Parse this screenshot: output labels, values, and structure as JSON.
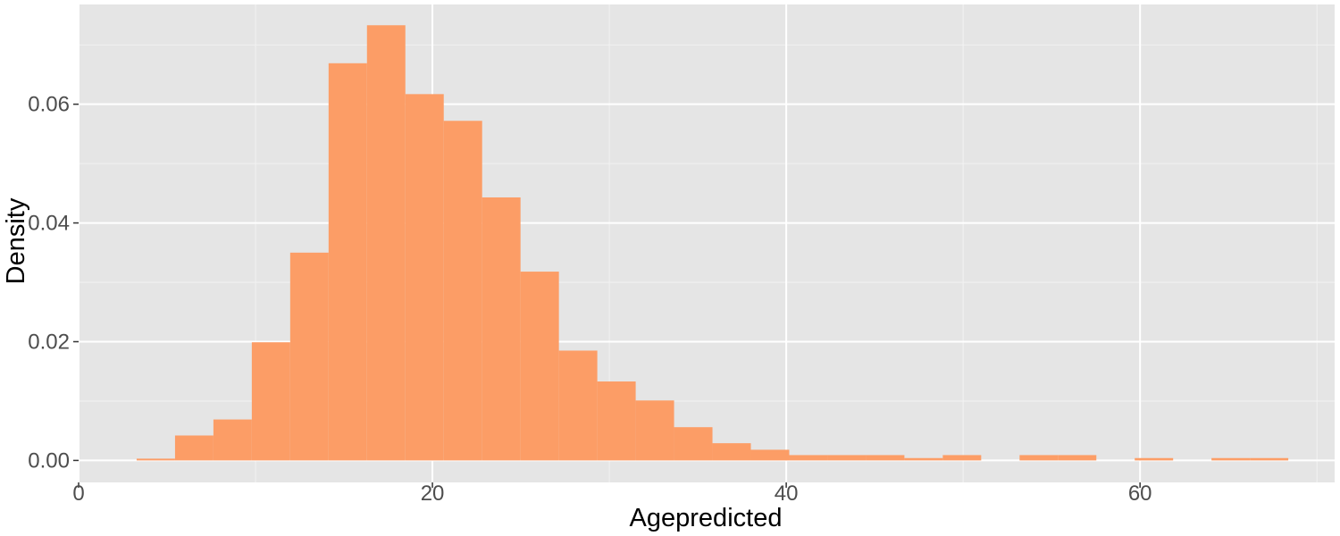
{
  "chart_data": {
    "type": "bar",
    "title": "",
    "xlabel": "Agepredicted",
    "ylabel": "Density",
    "xlim": [
      0,
      71
    ],
    "ylim": [
      -0.0037,
      0.0768
    ],
    "x_ticks": [
      0,
      20,
      40,
      60
    ],
    "x_tick_labels": [
      "0",
      "20",
      "40",
      "60"
    ],
    "x_minor_ticks": [
      10,
      30,
      50,
      70
    ],
    "y_ticks": [
      0.0,
      0.02,
      0.04,
      0.06
    ],
    "y_tick_labels": [
      "0.00",
      "0.02",
      "0.04",
      "0.06"
    ],
    "y_minor_ticks": [
      0.01,
      0.03,
      0.05,
      0.07
    ],
    "bin_width": 2.17,
    "bins": [
      {
        "x_start": 3.28,
        "density": 0.0003
      },
      {
        "x_start": 5.45,
        "density": 0.0042
      },
      {
        "x_start": 7.62,
        "density": 0.0069
      },
      {
        "x_start": 9.79,
        "density": 0.0199
      },
      {
        "x_start": 11.96,
        "density": 0.035
      },
      {
        "x_start": 14.13,
        "density": 0.0669
      },
      {
        "x_start": 16.3,
        "density": 0.0733
      },
      {
        "x_start": 18.47,
        "density": 0.0617
      },
      {
        "x_start": 20.64,
        "density": 0.0572
      },
      {
        "x_start": 22.81,
        "density": 0.0443
      },
      {
        "x_start": 24.98,
        "density": 0.0318
      },
      {
        "x_start": 27.15,
        "density": 0.0185
      },
      {
        "x_start": 29.32,
        "density": 0.0133
      },
      {
        "x_start": 31.49,
        "density": 0.0101
      },
      {
        "x_start": 33.66,
        "density": 0.0056
      },
      {
        "x_start": 35.83,
        "density": 0.0029
      },
      {
        "x_start": 38.0,
        "density": 0.0018
      },
      {
        "x_start": 40.17,
        "density": 0.0009
      },
      {
        "x_start": 42.34,
        "density": 0.0009
      },
      {
        "x_start": 44.51,
        "density": 0.0009
      },
      {
        "x_start": 46.68,
        "density": 0.0004
      },
      {
        "x_start": 48.85,
        "density": 0.0009
      },
      {
        "x_start": 53.19,
        "density": 0.0009
      },
      {
        "x_start": 55.36,
        "density": 0.0009
      },
      {
        "x_start": 59.7,
        "density": 0.0004
      },
      {
        "x_start": 64.04,
        "density": 0.0004
      },
      {
        "x_start": 66.21,
        "density": 0.0004
      }
    ],
    "grid": true,
    "legend": "none",
    "colors": {
      "bar": "#fc9d66",
      "panel_background": "#e5e5e5",
      "grid_major": "#ffffff",
      "tick_label": "#4d4d4d",
      "axis_title": "#000000"
    }
  }
}
